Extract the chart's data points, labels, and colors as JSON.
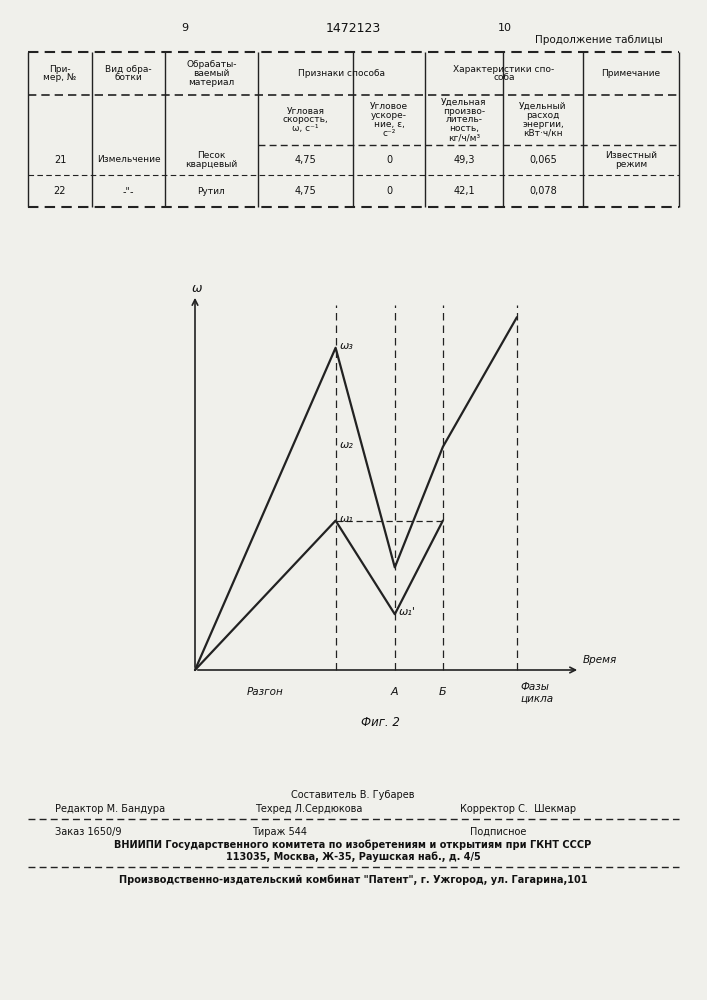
{
  "page_numbers": [
    "9",
    "10"
  ],
  "patent_number": "1472123",
  "subtitle": "Продолжение таблицы",
  "footer": {
    "composer": "Составитель В. Губарев",
    "editor_label": "Редактор М. Бандура",
    "techred_label": "Техред Л.Сердюкова",
    "corrector_label": "Корректор С.  Шекмар",
    "order": "Заказ 1650/9",
    "tiraz": "Тираж 544",
    "podpisnoe": "Подписное",
    "vniip1": "ВНИИПИ Государственного комитета по изобретениям и открытиям при ГКНТ СССР",
    "vniip2": "113035, Москва, Ж-35, Раушская наб., д. 4/5",
    "patent_line": "Производственно-издательский комбинат \"Патент\", г. Ужгород, ул. Гагарина,101"
  },
  "bg_color": "#f0f0eb",
  "text_color": "#111111",
  "line_color": "#222222"
}
